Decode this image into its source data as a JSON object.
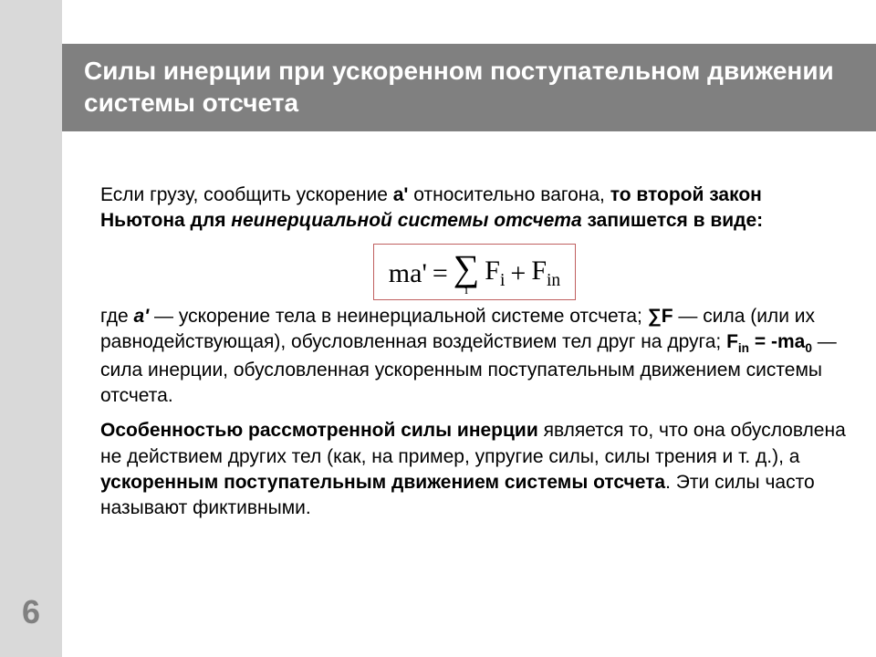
{
  "page_number": "6",
  "title": "Силы инерции при ускоренном поступательном движении системы отсчета",
  "colors": {
    "left_strip": "#d9d9d9",
    "title_bg": "#808080",
    "title_text": "#ffffff",
    "body_text": "#000000",
    "page_num_color": "#808080",
    "formula_border": "#c06060",
    "background": "#ffffff"
  },
  "para1": {
    "t1": "Если грузу, сообщить ускорение ",
    "a1": "a'",
    "t2": " относительно вагона, ",
    "b1": "то второй закон Ньютона для ",
    "bi1": "неинерциальной системы отсчета",
    "b2": " запишется в виде:"
  },
  "formula": {
    "lhs": "ma'",
    "eq": " = ",
    "sigma": "∑",
    "sigma_sub": "i",
    "term1_base": "F",
    "term1_sub": "i",
    "plus": " + ",
    "term2_base": "F",
    "term2_sub": "in"
  },
  "para2": {
    "t1": "где ",
    "b1": "a'",
    "t2": " — ускорение тела в неинерциальной системе отсчета; ",
    "b2": "∑F",
    "t3": " — сила (или их равнодействующая), обусловленная воздействием тел друг на друга; ",
    "b3_pre": "F",
    "b3_sub": "in",
    "b3_mid": " = -m",
    "b3_a": "a",
    "b3_asub": "0",
    "t4": " — сила инерции, обусловленная ускоренным поступательным движением системы отсчета."
  },
  "para3": {
    "b1": "Особенностью рассмотренной силы инерции",
    "t1": " является то, что она обусловлена не действием других тел (как, на пример, упругие силы, силы трения и т. д.), а ",
    "b2": "ускоренным поступательным движением системы отсчета",
    "t2": ". Эти силы часто называют фиктивными."
  }
}
